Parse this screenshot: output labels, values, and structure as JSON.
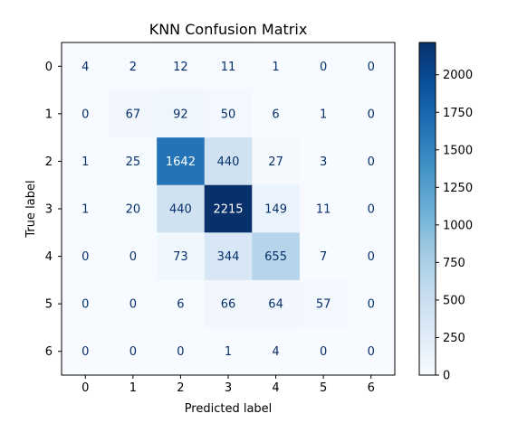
{
  "chart_data": {
    "type": "heatmap",
    "title": "KNN Confusion Matrix",
    "xlabel": "Predicted label",
    "ylabel": "True label",
    "x_categories": [
      "0",
      "1",
      "2",
      "3",
      "4",
      "5",
      "6"
    ],
    "y_categories": [
      "0",
      "1",
      "2",
      "3",
      "4",
      "5",
      "6"
    ],
    "values": [
      [
        4,
        2,
        12,
        11,
        1,
        0,
        0
      ],
      [
        0,
        67,
        92,
        50,
        6,
        1,
        0
      ],
      [
        1,
        25,
        1642,
        440,
        27,
        3,
        0
      ],
      [
        1,
        20,
        440,
        2215,
        149,
        11,
        0
      ],
      [
        0,
        0,
        73,
        344,
        655,
        7,
        0
      ],
      [
        0,
        0,
        6,
        66,
        64,
        57,
        0
      ],
      [
        0,
        0,
        0,
        1,
        4,
        0,
        0
      ]
    ],
    "colormap": "Blues",
    "colorbar": {
      "range": [
        0,
        2215
      ],
      "ticks": [
        "0",
        "250",
        "500",
        "750",
        "1000",
        "1250",
        "1500",
        "1750",
        "2000"
      ],
      "tick_values": [
        0,
        250,
        500,
        750,
        1000,
        1250,
        1500,
        1750,
        2000
      ]
    },
    "grid": false
  }
}
